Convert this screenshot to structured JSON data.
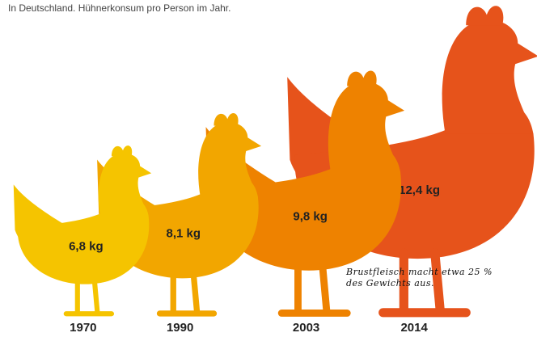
{
  "chart_data": {
    "type": "pictogram",
    "subtitle": "In Deutschland. Hühnerkonsum pro Person im Jahr.",
    "categories": [
      "1970",
      "1990",
      "2003",
      "2014"
    ],
    "values": [
      6.8,
      8.1,
      9.8,
      12.4
    ],
    "value_labels": [
      "6,8 kg",
      "8,1 kg",
      "9,8 kg",
      "12,4 kg"
    ],
    "colors": [
      "#f5c400",
      "#f2a600",
      "#ee8200",
      "#e6531b"
    ],
    "annotation": "Brustfleisch macht etwa 25 % des Gewichts aus."
  }
}
